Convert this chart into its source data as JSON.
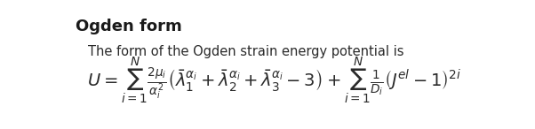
{
  "title": "Ogden form",
  "subtitle": "The form of the Ogden strain energy potential is",
  "bg_color": "#ffffff",
  "title_color": "#1a1a1a",
  "text_color": "#2a2a2a",
  "title_fontsize": 13,
  "subtitle_fontsize": 10.5,
  "formula_fontsize": 14,
  "fig_width": 6.02,
  "fig_height": 1.46
}
